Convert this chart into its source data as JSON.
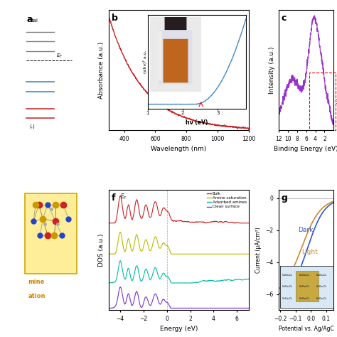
{
  "panel_b": {
    "xlabel": "Wavelength (nm)",
    "ylabel": "Absorbance (a.u.)",
    "line_color": "#cc2222",
    "inset_line_color": "#4488cc"
  },
  "panel_c": {
    "xlabel": "Binding Energy (eV)",
    "ylabel": "Intensity (a.u.)",
    "line_color": "#9933cc"
  },
  "panel_f": {
    "xlabel": "Energy (eV)",
    "ylabel": "DOS (a.u.)",
    "legend": [
      "Bulk",
      "Amine saturation",
      "Adsorbed amines",
      "Clean surface"
    ],
    "line_colors": [
      "#cc2222",
      "#bbbb00",
      "#00bbaa",
      "#7733cc"
    ]
  },
  "panel_g": {
    "xlabel": "Potential vs. Ag/AgC",
    "ylabel": "Current (μA/cm²)",
    "line_colors": [
      "#3355cc",
      "#cc8833"
    ]
  },
  "bg_color": "#ffffff"
}
